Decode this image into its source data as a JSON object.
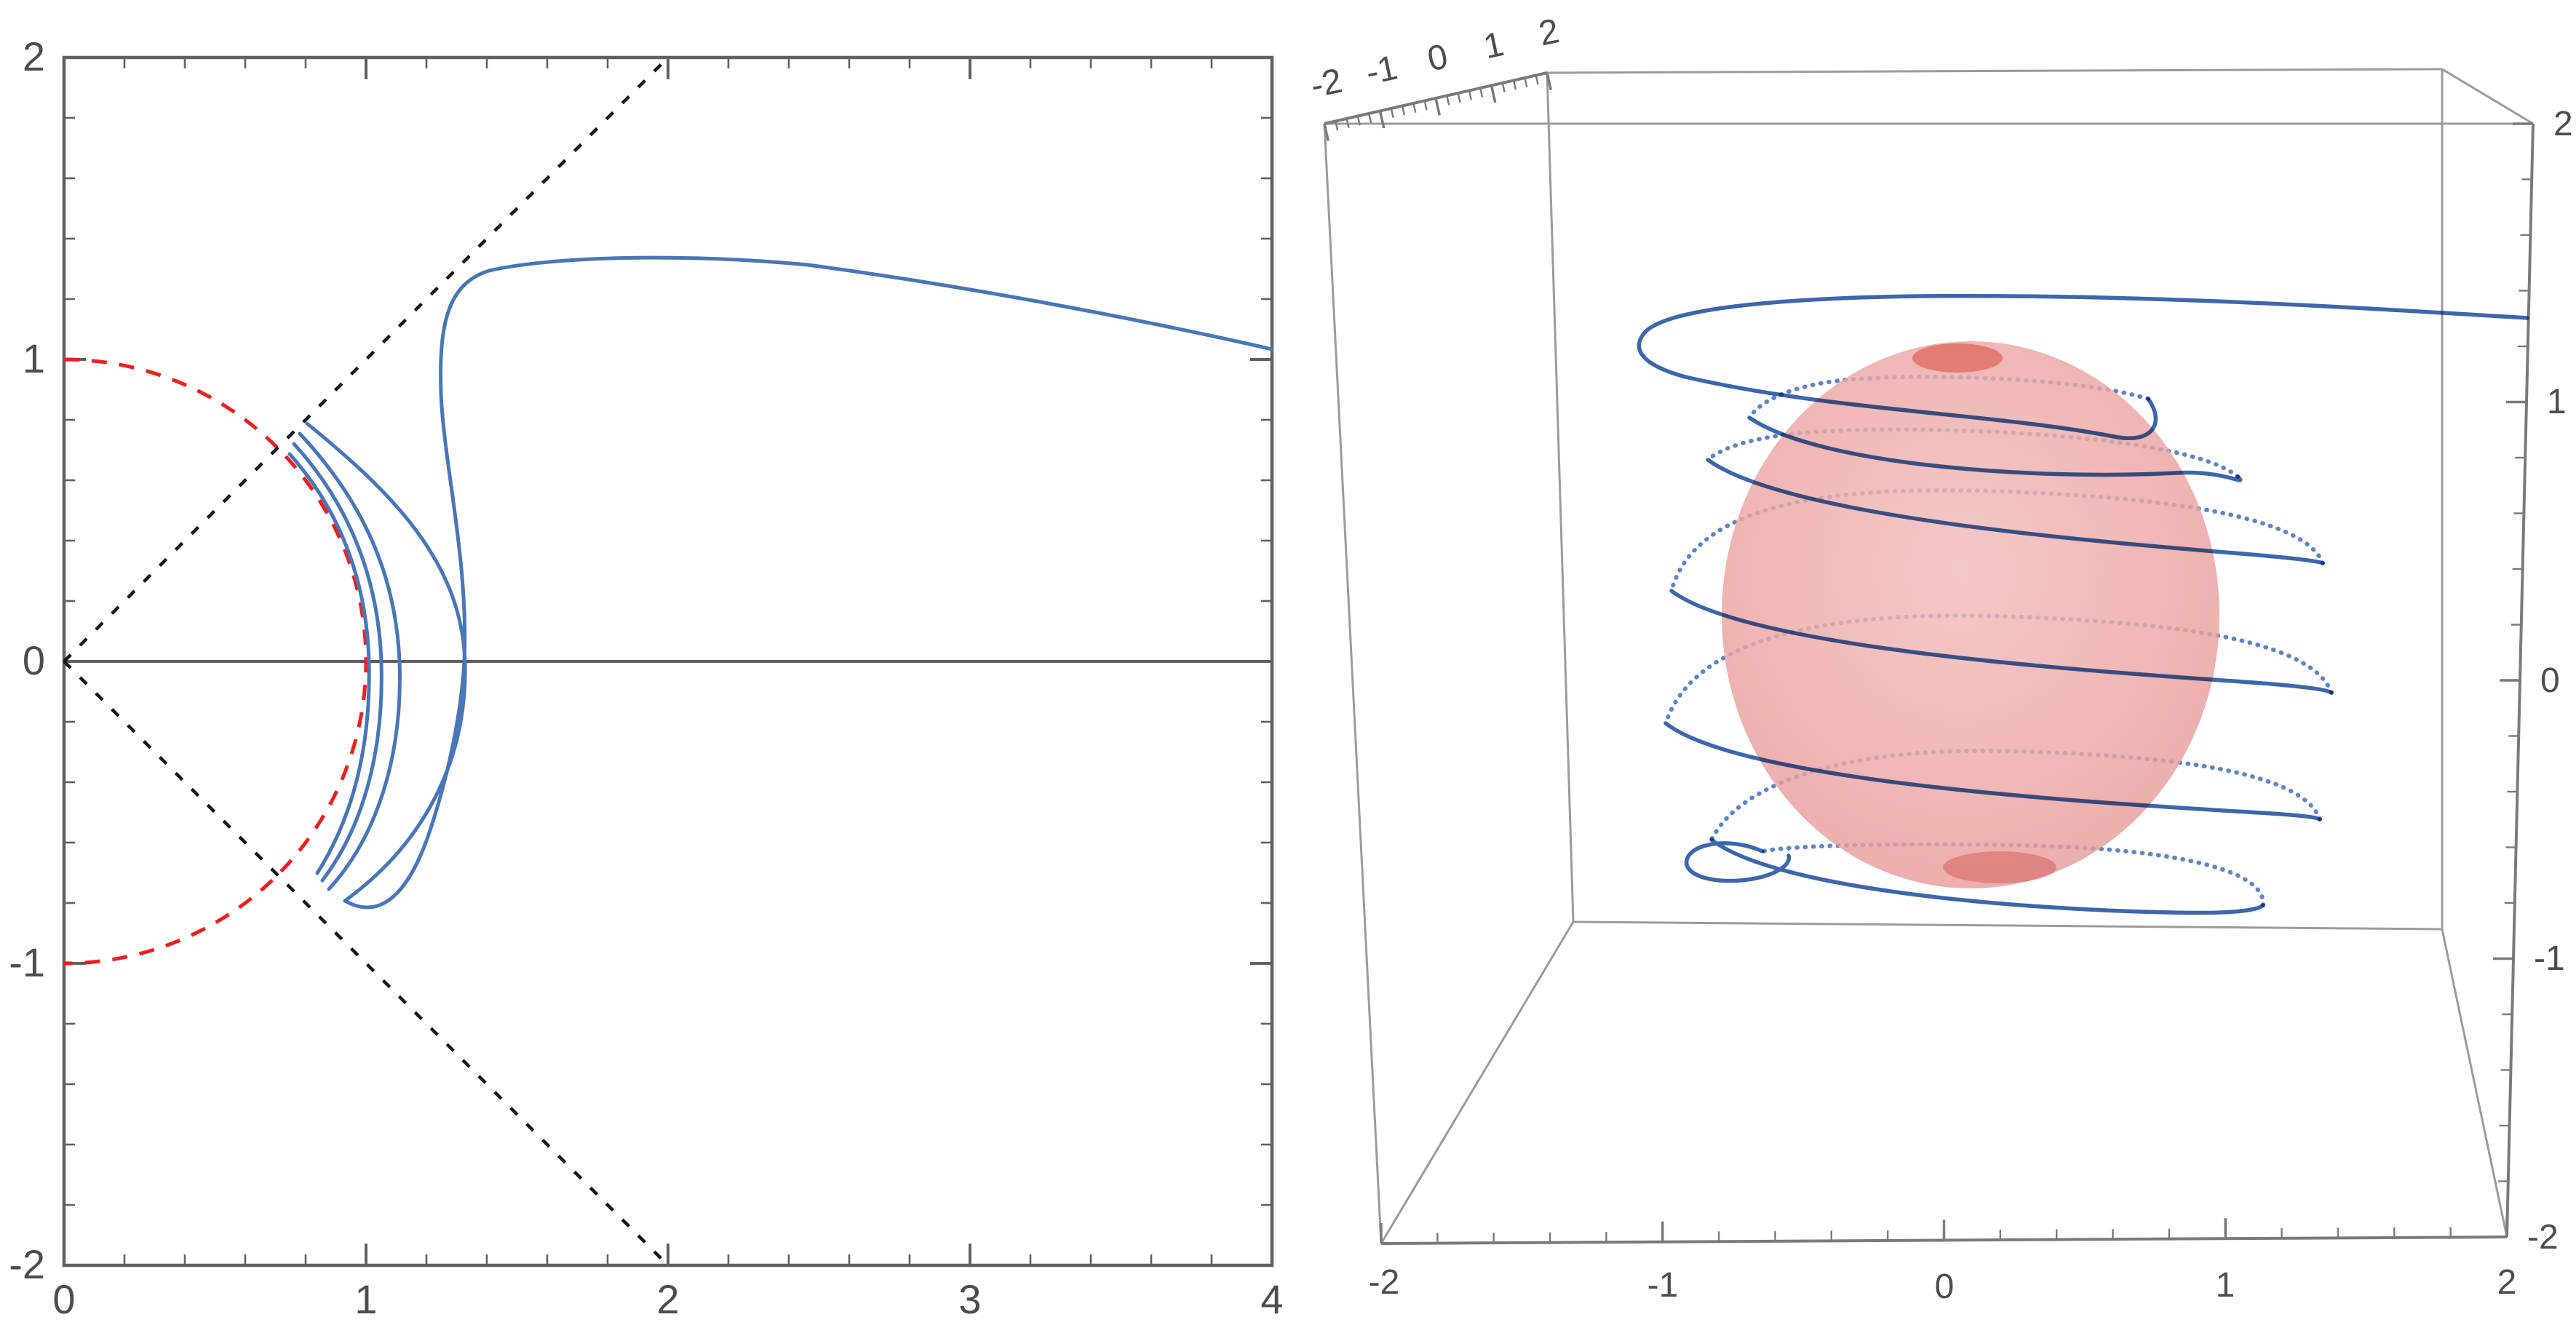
{
  "figure": {
    "background": "#ffffff",
    "description": "Two Mathematica-style plots: left is a 2D planar trajectory around a dashed unit circle with dashed cone lines, right is a 3D box with a translucent sphere and a blue helical trajectory"
  },
  "left_plot": {
    "x_tick_labels": [
      "0",
      "1",
      "2",
      "3",
      "4"
    ],
    "y_tick_labels": [
      "2",
      "1",
      "0",
      "-1",
      "-2"
    ],
    "colors": {
      "frame": "#616161",
      "axis_line": "#5f5f5f",
      "unit_circle": "#ee1f1f",
      "cone_lines": "#161616",
      "trajectory": "#4876b8",
      "tick_label": "#4d4d4d"
    }
  },
  "right_plot": {
    "top_axis_tick_labels": [
      "-2",
      "-1",
      "0",
      "1",
      "2"
    ],
    "bottom_axis_tick_labels": [
      "-2",
      "-1",
      "0",
      "1",
      "2"
    ],
    "right_axis_tick_labels": [
      "2",
      "1",
      "0",
      "-1",
      "-2"
    ],
    "colors": {
      "box_edges": "#9b9b9b",
      "ticked_edges": "#7a7a7a",
      "sphere_fill": "#eba6a4",
      "sphere_pole_spot": "#d94a3c",
      "trajectory_front": "#3c66ad",
      "trajectory_back": "#5e86c4",
      "tick_label": "#4d4d4d"
    }
  },
  "chart_data": [
    {
      "type": "line",
      "title": "",
      "xlabel": "",
      "ylabel": "",
      "xlim": [
        0,
        4
      ],
      "ylim": [
        -2,
        2
      ],
      "grid": false,
      "legend": "none",
      "frame": true,
      "x_ticks": [
        0,
        1,
        2,
        3,
        4
      ],
      "y_ticks": [
        -2,
        -1,
        0,
        1,
        2
      ],
      "series": [
        {
          "name": "unit-circle",
          "style": "dashed",
          "color": "red",
          "equation": "x^2 + y^2 = 1 (right half shown)",
          "points": [
            [
              0,
              1
            ],
            [
              0.5,
              0.87
            ],
            [
              0.87,
              0.5
            ],
            [
              1,
              0
            ],
            [
              0.87,
              -0.5
            ],
            [
              0.5,
              -0.87
            ],
            [
              0,
              -1
            ]
          ]
        },
        {
          "name": "cone-line-upper",
          "style": "dashed",
          "color": "black",
          "equation": "y = x",
          "points": [
            [
              0,
              0
            ],
            [
              2,
              2
            ]
          ]
        },
        {
          "name": "cone-line-lower",
          "style": "dashed",
          "color": "black",
          "equation": "y = -x",
          "points": [
            [
              0,
              0
            ],
            [
              2,
              -2
            ]
          ]
        },
        {
          "name": "trajectory",
          "style": "solid",
          "color": "steelblue",
          "points": [
            [
              0.75,
              0.69
            ],
            [
              1.01,
              0.0
            ],
            [
              0.84,
              -0.7
            ],
            [
              1.05,
              0.0
            ],
            [
              0.77,
              0.72
            ],
            [
              1.11,
              0.0
            ],
            [
              0.86,
              -0.74
            ],
            [
              0.93,
              -0.79
            ],
            [
              1.33,
              0.0
            ],
            [
              1.25,
              0.9
            ],
            [
              1.25,
              1.17
            ],
            [
              1.4,
              1.3
            ],
            [
              1.8,
              1.35
            ],
            [
              2.4,
              1.3
            ],
            [
              3.0,
              1.2
            ],
            [
              4.0,
              1.04
            ]
          ]
        }
      ]
    },
    {
      "type": "line3d",
      "title": "",
      "xlim": [
        -2,
        2
      ],
      "ylim": [
        -2,
        2
      ],
      "zlim": [
        -2,
        2
      ],
      "x_ticks": [
        -2,
        -1,
        0,
        1,
        2
      ],
      "y_ticks": [
        -2,
        -1,
        0,
        1,
        2
      ],
      "z_ticks": [
        -2,
        -1,
        0,
        1,
        2
      ],
      "surfaces": [
        {
          "name": "sphere",
          "color": "pink-red",
          "opacity": 0.8,
          "center": [
            0,
            0,
            0
          ],
          "radius": 1.0
        }
      ],
      "series": [
        {
          "name": "helical-trajectory",
          "style": "dense-points",
          "color": "steelblue",
          "description": "Trajectory winding ~5 turns around the sphere, descending from z=-1 to z=1 region, then escaping in a wide loop at top exiting the box at x=+2, z=1.2",
          "points": [
            [
              1.1,
              0,
              -1.0
            ],
            [
              -1.1,
              0.3,
              -0.85
            ],
            [
              1.15,
              -0.3,
              -0.6
            ],
            [
              -1.2,
              0.3,
              -0.35
            ],
            [
              1.2,
              -0.3,
              -0.1
            ],
            [
              -1.15,
              0.3,
              0.2
            ],
            [
              1.15,
              -0.3,
              0.45
            ],
            [
              -1.1,
              0.2,
              0.7
            ],
            [
              1.0,
              -0.2,
              0.95
            ],
            [
              -1.6,
              0,
              1.25
            ],
            [
              2.0,
              0,
              1.2
            ]
          ]
        }
      ]
    }
  ]
}
